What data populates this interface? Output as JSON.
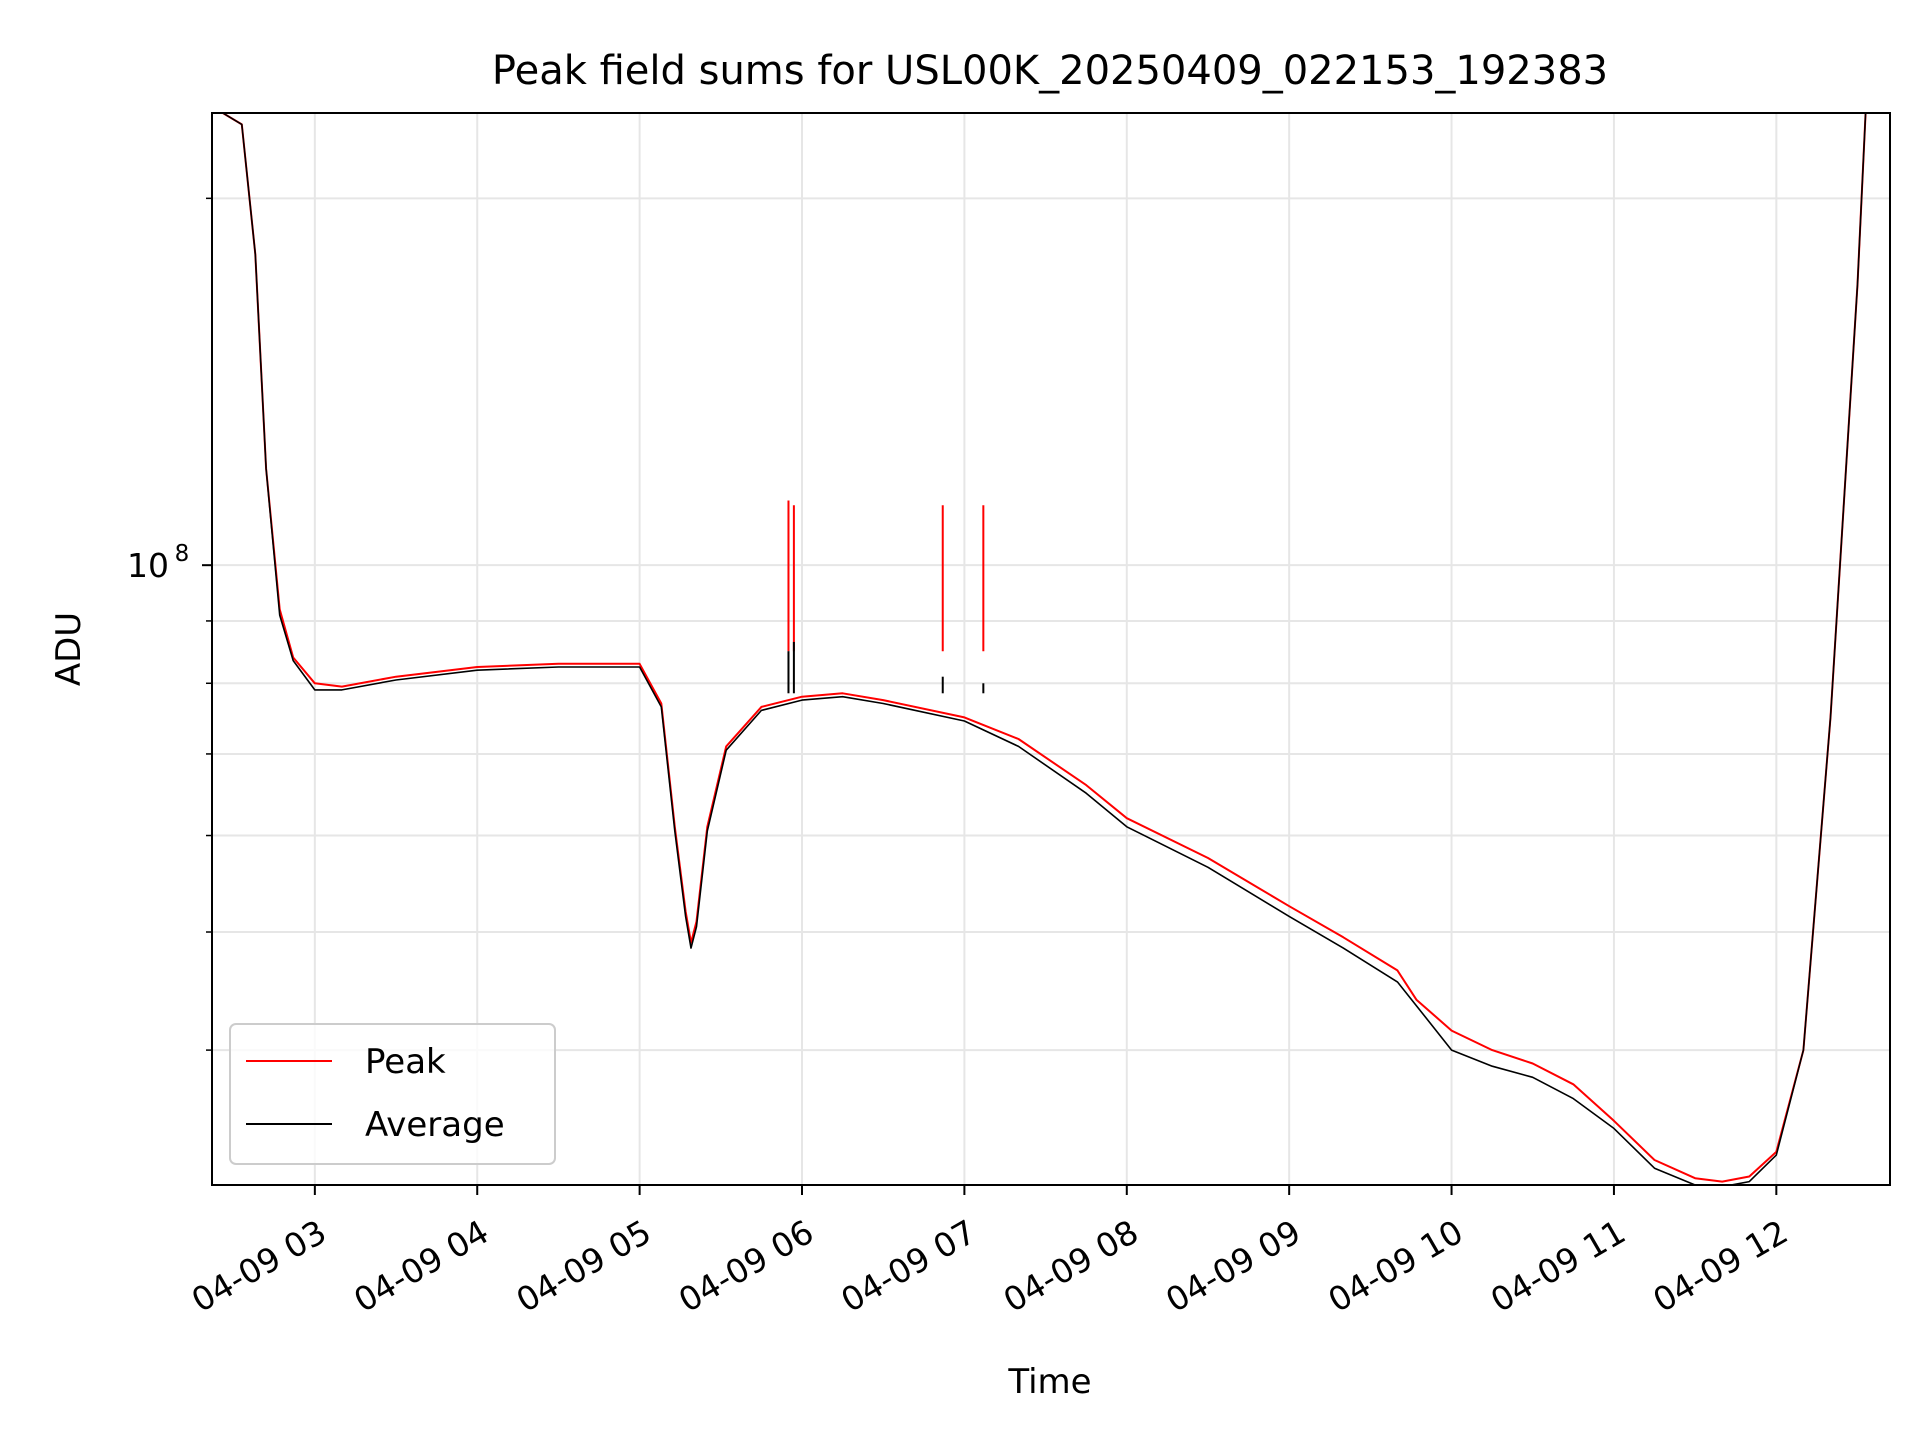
{
  "chart_data": {
    "type": "line",
    "title": "Peak field sums for USL00K_20250409_022153_192383",
    "xlabel": "Time",
    "ylabel": "ADU",
    "yscale": "log",
    "grid": true,
    "legend_position": "lower-left",
    "xlim": [
      "2025-04-09T02:22",
      "2025-04-09T12:42"
    ],
    "ylim": [
      31000000,
      235000000
    ],
    "x_ticks": [
      "2025-04-09T03:00",
      "2025-04-09T04:00",
      "2025-04-09T05:00",
      "2025-04-09T06:00",
      "2025-04-09T07:00",
      "2025-04-09T08:00",
      "2025-04-09T09:00",
      "2025-04-09T10:00",
      "2025-04-09T11:00",
      "2025-04-09T12:00"
    ],
    "x_tick_labels": [
      "04-09 03",
      "04-09 04",
      "04-09 05",
      "04-09 06",
      "04-09 07",
      "04-09 08",
      "04-09 09",
      "04-09 10",
      "04-09 11",
      "04-09 12"
    ],
    "y_major_ticks": [
      100000000
    ],
    "y_major_tick_labels": [
      "10",
      "8"
    ],
    "y_minor_ticks": [
      40000000,
      50000000,
      60000000,
      70000000,
      80000000,
      90000000,
      200000000
    ],
    "series": [
      {
        "name": "Peak",
        "color": "#ff0000",
        "x": [
          "2025-04-09T02:22",
          "2025-04-09T02:26",
          "2025-04-09T02:33",
          "2025-04-09T02:38",
          "2025-04-09T02:42",
          "2025-04-09T02:47",
          "2025-04-09T02:52",
          "2025-04-09T03:00",
          "2025-04-09T03:10",
          "2025-04-09T03:30",
          "2025-04-09T04:00",
          "2025-04-09T04:30",
          "2025-04-09T05:00",
          "2025-04-09T05:08",
          "2025-04-09T05:13",
          "2025-04-09T05:17",
          "2025-04-09T05:19",
          "2025-04-09T05:21",
          "2025-04-09T05:25",
          "2025-04-09T05:32",
          "2025-04-09T05:45",
          "2025-04-09T06:00",
          "2025-04-09T06:15",
          "2025-04-09T06:30",
          "2025-04-09T07:00",
          "2025-04-09T07:20",
          "2025-04-09T07:45",
          "2025-04-09T08:00",
          "2025-04-09T08:30",
          "2025-04-09T09:00",
          "2025-04-09T09:20",
          "2025-04-09T09:40",
          "2025-04-09T09:47",
          "2025-04-09T10:00",
          "2025-04-09T10:15",
          "2025-04-09T10:30",
          "2025-04-09T10:45",
          "2025-04-09T11:00",
          "2025-04-09T11:15",
          "2025-04-09T11:30",
          "2025-04-09T11:40",
          "2025-04-09T11:50",
          "2025-04-09T12:00",
          "2025-04-09T12:10",
          "2025-04-09T12:20",
          "2025-04-09T12:30",
          "2025-04-09T12:33"
        ],
        "values": [
          235000000,
          235000000,
          230000000,
          180000000,
          120000000,
          92000000,
          84000000,
          80000000,
          79500000,
          81000000,
          82500000,
          83000000,
          83000000,
          77000000,
          61000000,
          52000000,
          49000000,
          51000000,
          61000000,
          71000000,
          76500000,
          78000000,
          78500000,
          77500000,
          75000000,
          72000000,
          66000000,
          62000000,
          57500000,
          52500000,
          49500000,
          46500000,
          44000000,
          41500000,
          40000000,
          39000000,
          37500000,
          35000000,
          32500000,
          31400000,
          31200000,
          31500000,
          33000000,
          40000000,
          75000000,
          170000000,
          235000000
        ]
      },
      {
        "name": "Average",
        "color": "#000000",
        "x": [
          "2025-04-09T02:22",
          "2025-04-09T02:26",
          "2025-04-09T02:33",
          "2025-04-09T02:38",
          "2025-04-09T02:42",
          "2025-04-09T02:47",
          "2025-04-09T02:52",
          "2025-04-09T03:00",
          "2025-04-09T03:10",
          "2025-04-09T03:30",
          "2025-04-09T04:00",
          "2025-04-09T04:30",
          "2025-04-09T05:00",
          "2025-04-09T05:08",
          "2025-04-09T05:13",
          "2025-04-09T05:17",
          "2025-04-09T05:19",
          "2025-04-09T05:21",
          "2025-04-09T05:25",
          "2025-04-09T05:32",
          "2025-04-09T05:45",
          "2025-04-09T06:00",
          "2025-04-09T06:15",
          "2025-04-09T06:30",
          "2025-04-09T07:00",
          "2025-04-09T07:20",
          "2025-04-09T07:45",
          "2025-04-09T08:00",
          "2025-04-09T08:30",
          "2025-04-09T09:00",
          "2025-04-09T09:20",
          "2025-04-09T09:40",
          "2025-04-09T09:47",
          "2025-04-09T10:00",
          "2025-04-09T10:15",
          "2025-04-09T10:30",
          "2025-04-09T10:45",
          "2025-04-09T11:00",
          "2025-04-09T11:15",
          "2025-04-09T11:30",
          "2025-04-09T11:40",
          "2025-04-09T11:50",
          "2025-04-09T12:00",
          "2025-04-09T12:10",
          "2025-04-09T12:20",
          "2025-04-09T12:30",
          "2025-04-09T12:33"
        ],
        "values": [
          235000000,
          235000000,
          230000000,
          180000000,
          120000000,
          91000000,
          83500000,
          79000000,
          79000000,
          80500000,
          82000000,
          82500000,
          82500000,
          76500000,
          60500000,
          51500000,
          48500000,
          50500000,
          60500000,
          70500000,
          76000000,
          77500000,
          78000000,
          77000000,
          74500000,
          71000000,
          65000000,
          61000000,
          56500000,
          51500000,
          48500000,
          45500000,
          43500000,
          40000000,
          38800000,
          38000000,
          36500000,
          34500000,
          32000000,
          31000000,
          30900000,
          31200000,
          32800000,
          40000000,
          75000000,
          170000000,
          235000000
        ]
      }
    ],
    "spikes": [
      {
        "x": "2025-04-09T05:55",
        "peak": 113000000,
        "average": 85000000
      },
      {
        "x": "2025-04-09T05:57",
        "peak": 112000000,
        "average": 86500000
      },
      {
        "x": "2025-04-09T06:52",
        "peak": 112000000,
        "average": 81000000
      },
      {
        "x": "2025-04-09T07:07",
        "peak": 112000000,
        "average": 80000000
      }
    ]
  }
}
